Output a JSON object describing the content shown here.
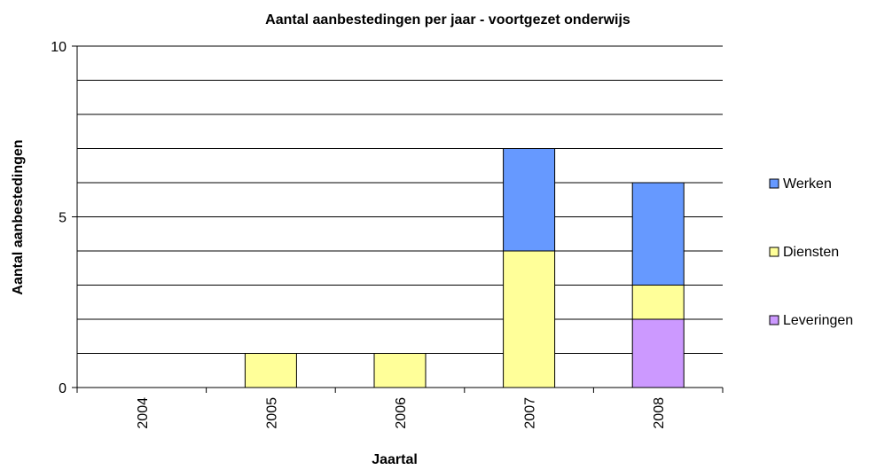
{
  "chart_data": {
    "type": "stacked_bar",
    "title": "Aantal aanbestedingen per jaar - voortgezet onderwijs",
    "x_label": "Jaartal",
    "y_label": "Aantal aanbestedingen",
    "categories": [
      "2004",
      "2005",
      "2006",
      "2007",
      "2008"
    ],
    "series": [
      {
        "name": "Leveringen",
        "color": "#cc99ff",
        "values": [
          0,
          0,
          0,
          0,
          2
        ]
      },
      {
        "name": "Diensten",
        "color": "#ffff99",
        "values": [
          0,
          1,
          1,
          4,
          1
        ]
      },
      {
        "name": "Werken",
        "color": "#6699ff",
        "values": [
          0,
          0,
          0,
          3,
          3
        ]
      }
    ],
    "ylim": [
      0,
      10
    ],
    "yticks": [
      0,
      5,
      10
    ],
    "grid_lines": [
      1,
      2,
      3,
      4,
      5,
      6,
      7,
      8,
      9,
      10
    ],
    "legend": "right"
  }
}
